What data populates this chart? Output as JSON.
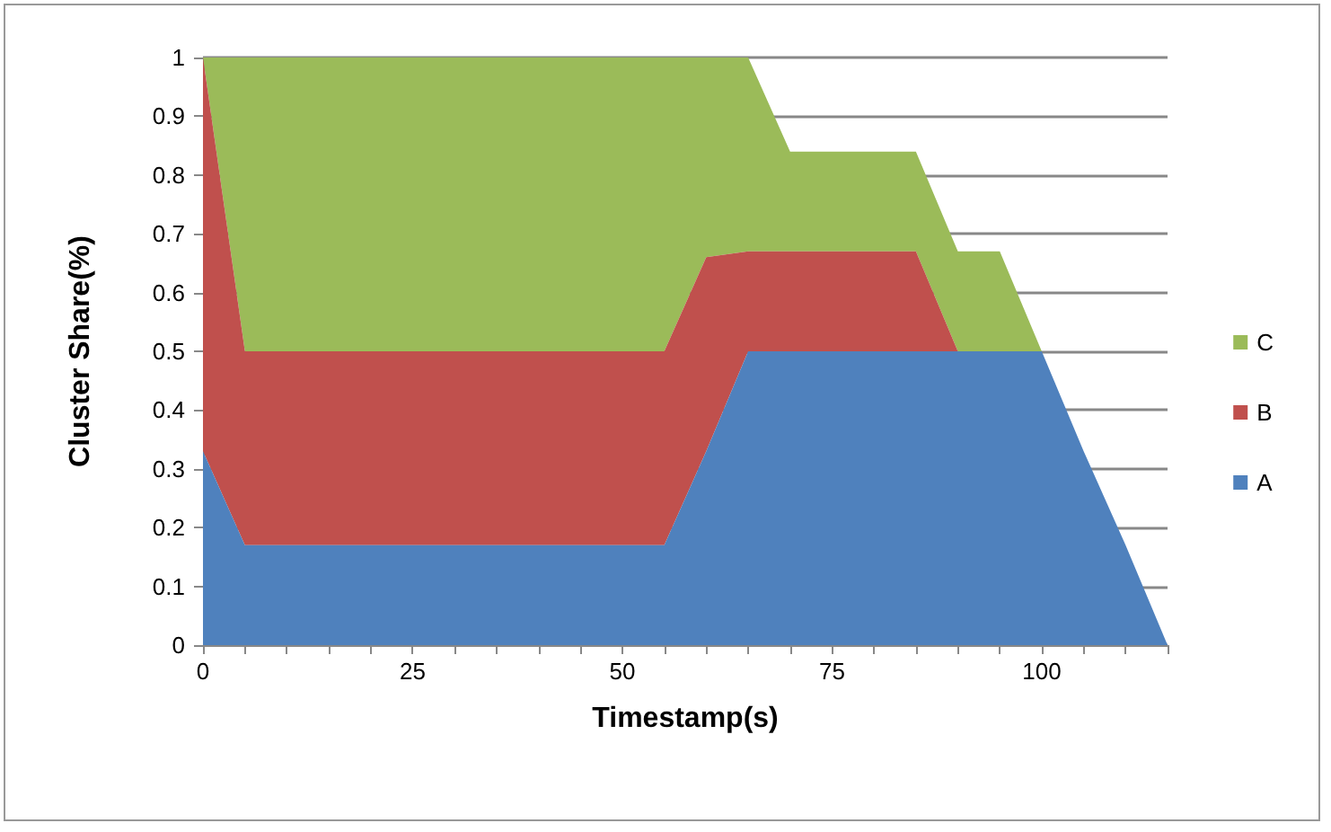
{
  "chart_data": {
    "type": "area",
    "stacked": true,
    "xlabel": "Timestamp(s)",
    "ylabel": "Cluster Share(%)",
    "x": [
      0,
      5,
      10,
      15,
      20,
      25,
      30,
      35,
      40,
      45,
      50,
      55,
      60,
      65,
      70,
      75,
      80,
      85,
      90,
      95,
      100,
      105,
      110,
      115
    ],
    "series": [
      {
        "name": "A",
        "color": "#4f81bd",
        "values": [
          0.33,
          0.17,
          0.17,
          0.17,
          0.17,
          0.17,
          0.17,
          0.17,
          0.17,
          0.17,
          0.17,
          0.17,
          0.33,
          0.5,
          0.5,
          0.5,
          0.5,
          0.5,
          0.5,
          0.5,
          0.5,
          0.33,
          0.17,
          0
        ]
      },
      {
        "name": "B",
        "color": "#c0504d",
        "values": [
          0.67,
          0.33,
          0.33,
          0.33,
          0.33,
          0.33,
          0.33,
          0.33,
          0.33,
          0.33,
          0.33,
          0.33,
          0.33,
          0.17,
          0.17,
          0.17,
          0.17,
          0.17,
          0,
          null,
          null,
          null,
          null,
          null
        ]
      },
      {
        "name": "C",
        "color": "#9bbb59",
        "values": [
          0,
          0.5,
          0.5,
          0.5,
          0.5,
          0.5,
          0.5,
          0.5,
          0.5,
          0.5,
          0.5,
          0.5,
          0.34,
          0.33,
          0.17,
          0.17,
          0.17,
          0.17,
          0.17,
          0.17,
          0,
          null,
          null,
          null
        ]
      }
    ],
    "xlim": [
      0,
      115
    ],
    "xticks": [
      0,
      {
        "value": 5,
        "label": null
      },
      {
        "value": 10,
        "label": null
      },
      {
        "value": 15,
        "label": null
      },
      {
        "value": 20,
        "label": null
      },
      25,
      {
        "value": 30,
        "label": null
      },
      {
        "value": 35,
        "label": null
      },
      {
        "value": 40,
        "label": null
      },
      {
        "value": 45,
        "label": null
      },
      50,
      {
        "value": 55,
        "label": null
      },
      {
        "value": 60,
        "label": null
      },
      {
        "value": 65,
        "label": null
      },
      {
        "value": 70,
        "label": null
      },
      75,
      {
        "value": 80,
        "label": null
      },
      {
        "value": 85,
        "label": null
      },
      {
        "value": 90,
        "label": null
      },
      {
        "value": 95,
        "label": null
      },
      100,
      {
        "value": 105,
        "label": null
      },
      {
        "value": 110,
        "label": null
      },
      {
        "value": 115,
        "label": null
      }
    ],
    "ylim": [
      0,
      1
    ],
    "yticks": [
      0,
      0.1,
      0.2,
      0.3,
      0.4,
      0.5,
      0.6,
      0.7,
      0.8,
      0.9,
      1
    ],
    "grid": "y",
    "legend": "right"
  }
}
